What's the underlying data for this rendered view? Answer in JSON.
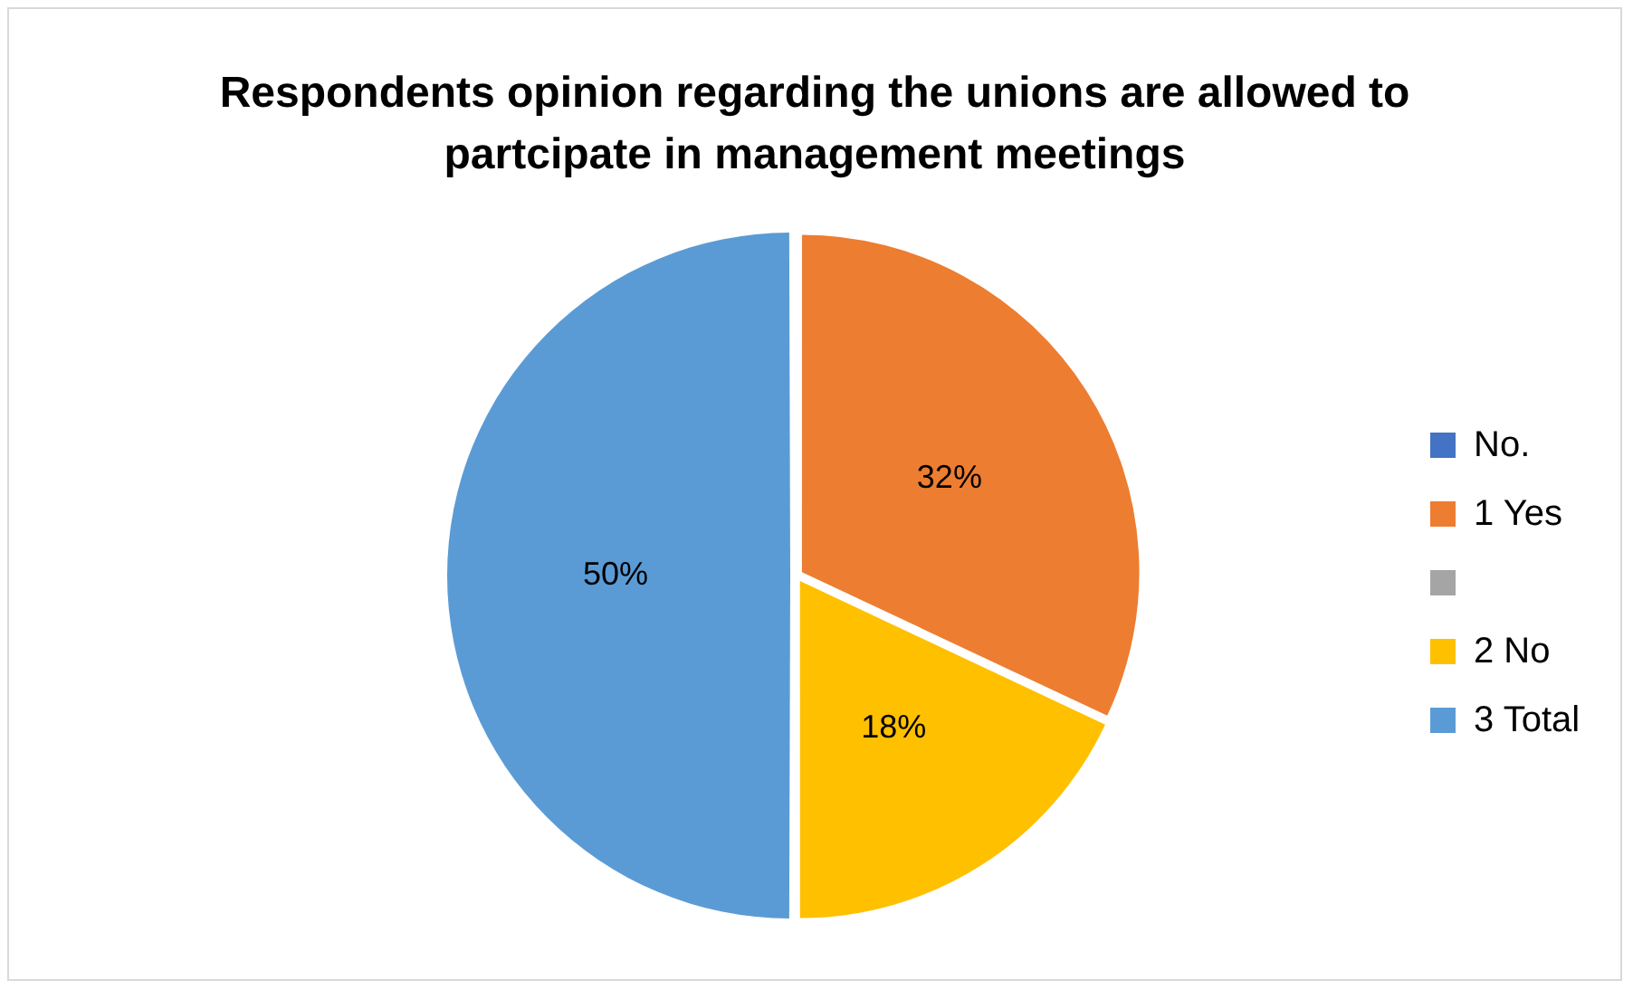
{
  "chart_data": {
    "type": "pie",
    "title": "Respondents opinion regarding the unions are allowed to partcipate in management meetings",
    "categories": [
      "No.",
      "1 Yes",
      null,
      "2 No",
      "3 Total"
    ],
    "values": [
      0,
      32,
      0,
      18,
      50
    ],
    "colors": [
      "#4472c4",
      "#ed7d31",
      "#a5a5a5",
      "#ffc000",
      "#5b9bd5"
    ],
    "value_labels": [
      null,
      "32%",
      null,
      "18%",
      "50%"
    ],
    "legend": "right"
  }
}
